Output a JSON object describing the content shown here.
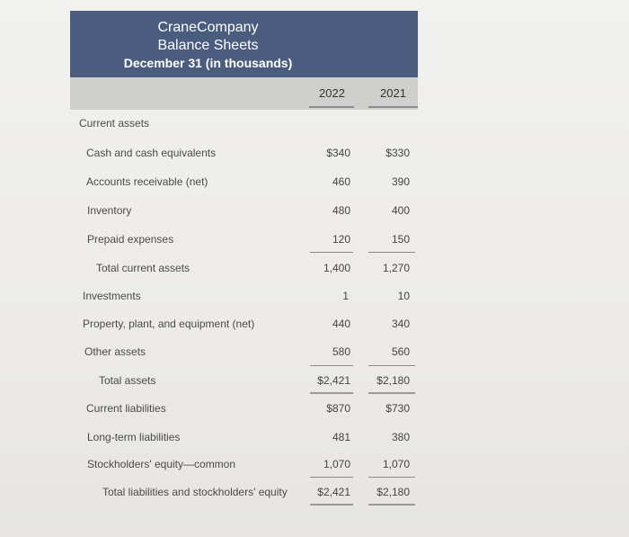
{
  "header": {
    "company": "CraneCompany",
    "statement": "Balance Sheets",
    "date": "December 31 (in thousands)"
  },
  "columns": [
    "2022",
    "2021"
  ],
  "section_label": "Current assets",
  "rows": [
    {
      "label": "Cash and cash equivalents",
      "v2022": "$340",
      "v2021": "$330"
    },
    {
      "label": "Accounts receivable (net)",
      "v2022": "460",
      "v2021": "390"
    },
    {
      "label": "Inventory",
      "v2022": "480",
      "v2021": "400"
    },
    {
      "label": "Prepaid expenses",
      "v2022": "120",
      "v2021": "150"
    },
    {
      "label": "Total current assets",
      "v2022": "1,400",
      "v2021": "1,270"
    },
    {
      "label": "Investments",
      "v2022": "1",
      "v2021": "10"
    },
    {
      "label": "Property, plant, and equipment (net)",
      "v2022": "440",
      "v2021": "340"
    },
    {
      "label": "Other assets",
      "v2022": "580",
      "v2021": "560"
    },
    {
      "label": "Total assets",
      "v2022": "$2,421",
      "v2021": "$2,180"
    },
    {
      "label": "Current liabilities",
      "v2022": "$870",
      "v2021": "$730"
    },
    {
      "label": "Long-term liabilities",
      "v2022": "481",
      "v2021": "380"
    },
    {
      "label": "Stockholders' equity—common",
      "v2022": "1,070",
      "v2021": "1,070"
    },
    {
      "label": "Total liabilities and stockholders' equity",
      "v2022": "$2,421",
      "v2021": "$2,180"
    }
  ]
}
